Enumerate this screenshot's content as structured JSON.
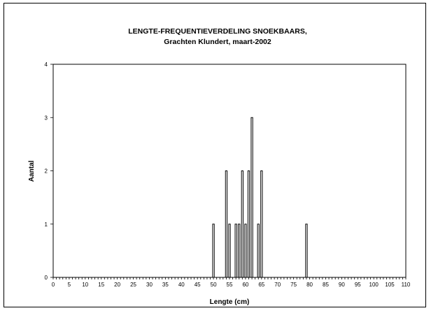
{
  "chart_data": {
    "type": "bar",
    "title": "LENGTE-FREQUENTIEVERDELING SNOEKBAARS,",
    "subtitle": "Grachten Klundert, maart-2002",
    "xlabel": "Lengte (cm)",
    "ylabel": "Aantal",
    "xlim": [
      0,
      110
    ],
    "ylim": [
      0,
      4
    ],
    "x_ticks": [
      "0",
      "5",
      "10",
      "15",
      "20",
      "25",
      "30",
      "35",
      "40",
      "45",
      "50",
      "55",
      "60",
      "65",
      "70",
      "75",
      "80",
      "85",
      "90",
      "95",
      "100",
      "105",
      "110"
    ],
    "y_ticks": [
      "0",
      "1",
      "2",
      "3",
      "4"
    ],
    "grid": false,
    "legend": "none",
    "bar_color": "#ffffff",
    "bar_edge_color": "#000000",
    "x": [
      50,
      54,
      55,
      57,
      58,
      59,
      60,
      61,
      62,
      64,
      65,
      79
    ],
    "values": [
      1,
      2,
      1,
      1,
      1,
      2,
      1,
      2,
      3,
      1,
      2,
      1
    ]
  }
}
